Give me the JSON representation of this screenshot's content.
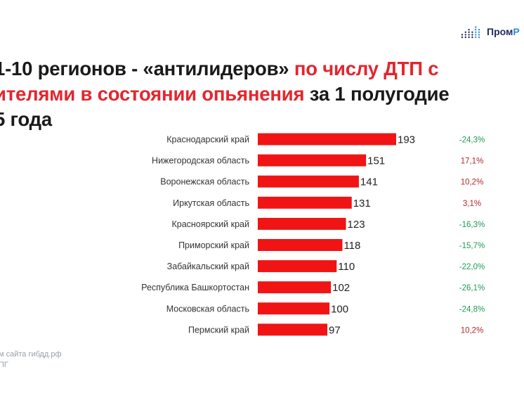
{
  "logo": {
    "text_a": "Пром",
    "text_b": "Р",
    "mark": "dot-bars-icon",
    "color_a": "#1f2a5c",
    "color_b": "#2b8be0"
  },
  "title": {
    "line1_a": "1-10 регионов - «антилидеров» ",
    "line1_b": "по числу ДТП с",
    "line2_a": "ителями в состоянии опьянения",
    "line2_b": " за 1 полугодие",
    "line3": "5 года"
  },
  "footer": {
    "line1": "м сайта гибдд.рф",
    "line2": "ПГ"
  },
  "colors": {
    "bar": "#f01414",
    "highlight": "#e3262e",
    "negative": "#1e9a55",
    "positive": "#b3282d"
  },
  "chart_data": {
    "type": "bar",
    "orientation": "horizontal",
    "categories": [
      "Краснодарский край",
      "Нижегородская область",
      "Воронежская область",
      "Иркутская область",
      "Красноярский край",
      "Приморский край",
      "Забайкальский край",
      "Республика Башкортостан",
      "Московская область",
      "Пермский край"
    ],
    "values": [
      193,
      151,
      141,
      131,
      123,
      118,
      110,
      102,
      100,
      97
    ],
    "value_labels": [
      "193",
      "151",
      "141",
      "131",
      "123",
      "118",
      "110",
      "102",
      "100",
      "97"
    ],
    "changes": [
      "-24,3%",
      "17,1%",
      "10,2%",
      "3,1%",
      "-16,3%",
      "-15,7%",
      "-22,0%",
      "-26,1%",
      "-24,8%",
      "10,2%"
    ],
    "xlim": [
      0,
      193
    ],
    "grid": false
  }
}
